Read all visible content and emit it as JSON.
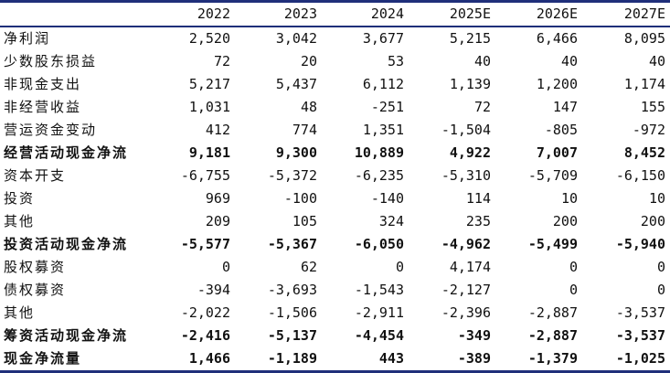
{
  "header": [
    "",
    "2022",
    "2023",
    "2024",
    "2025E",
    "2026E",
    "2027E"
  ],
  "rows": [
    {
      "label": "净利润",
      "values": [
        "2,520",
        "3,042",
        "3,677",
        "5,215",
        "6,466",
        "8,095"
      ],
      "bold": false
    },
    {
      "label": "少数股东损益",
      "values": [
        "72",
        "20",
        "53",
        "40",
        "40",
        "40"
      ],
      "bold": false
    },
    {
      "label": "非现金支出",
      "values": [
        "5,217",
        "5,437",
        "6,112",
        "1,139",
        "1,200",
        "1,174"
      ],
      "bold": false
    },
    {
      "label": "非经营收益",
      "values": [
        "1,031",
        "48",
        "-251",
        "72",
        "147",
        "155"
      ],
      "bold": false
    },
    {
      "label": "营运资金变动",
      "values": [
        "412",
        "774",
        "1,351",
        "-1,504",
        "-805",
        "-972"
      ],
      "bold": false
    },
    {
      "label": "经营活动现金净流",
      "values": [
        "9,181",
        "9,300",
        "10,889",
        "4,922",
        "7,007",
        "8,452"
      ],
      "bold": true
    },
    {
      "label": "资本开支",
      "values": [
        "-6,755",
        "-5,372",
        "-6,235",
        "-5,310",
        "-5,709",
        "-6,150"
      ],
      "bold": false
    },
    {
      "label": "投资",
      "values": [
        "969",
        "-100",
        "-140",
        "114",
        "10",
        "10"
      ],
      "bold": false
    },
    {
      "label": "其他",
      "values": [
        "209",
        "105",
        "324",
        "235",
        "200",
        "200"
      ],
      "bold": false
    },
    {
      "label": "投资活动现金净流",
      "values": [
        "-5,577",
        "-5,367",
        "-6,050",
        "-4,962",
        "-5,499",
        "-5,940"
      ],
      "bold": true
    },
    {
      "label": "股权募资",
      "values": [
        "0",
        "62",
        "0",
        "4,174",
        "0",
        "0"
      ],
      "bold": false
    },
    {
      "label": "债权募资",
      "values": [
        "-394",
        "-3,693",
        "-1,543",
        "-2,127",
        "0",
        "0"
      ],
      "bold": false
    },
    {
      "label": "其他",
      "values": [
        "-2,022",
        "-1,506",
        "-2,911",
        "-2,396",
        "-2,887",
        "-3,537"
      ],
      "bold": false
    },
    {
      "label": "筹资活动现金净流",
      "values": [
        "-2,416",
        "-5,137",
        "-4,454",
        "-349",
        "-2,887",
        "-3,537"
      ],
      "bold": true
    },
    {
      "label": "现金净流量",
      "values": [
        "1,466",
        "-1,189",
        "443",
        "-389",
        "-1,379",
        "-1,025"
      ],
      "bold": true
    }
  ],
  "colors": {
    "rule": "#1f2f7a",
    "text": "#111111"
  }
}
